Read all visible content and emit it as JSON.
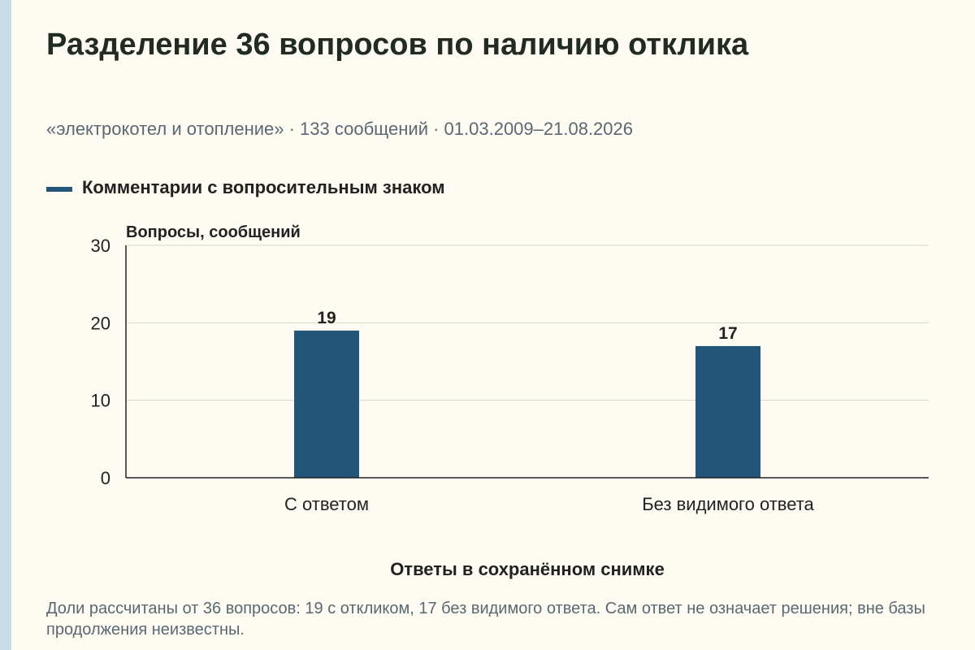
{
  "title": "Разделение 36 вопросов по наличию отклика",
  "subtitle": "«электрокотел и отопление» · 133 сообщений · 01.03.2009–21.08.2026",
  "legend": {
    "label": "Комментарии с вопросительным знаком"
  },
  "note": "Доли рассчитаны от 36 вопросов: 19 с откликом, 17 без видимого ответа. Сам ответ не означает решения; вне базы продолжения неизвестны.",
  "colors": {
    "bar": "#235579",
    "grid": "#d9d6cc",
    "axis": "#222222",
    "accent_stripe": "#c9dcea"
  },
  "chart_data": {
    "type": "bar",
    "categories": [
      "С ответом",
      "Без видимого ответа"
    ],
    "series": [
      {
        "name": "Комментарии с вопросительным знаком",
        "values": [
          19,
          17
        ]
      }
    ],
    "data_labels": [
      "19",
      "17"
    ],
    "ylabel": "Вопросы, сообщений",
    "xlabel": "Ответы в сохранённом снимке",
    "ylim": [
      0,
      30
    ],
    "yticks": [
      0,
      10,
      20,
      30
    ],
    "grid": true,
    "legend_position": "top-left"
  }
}
